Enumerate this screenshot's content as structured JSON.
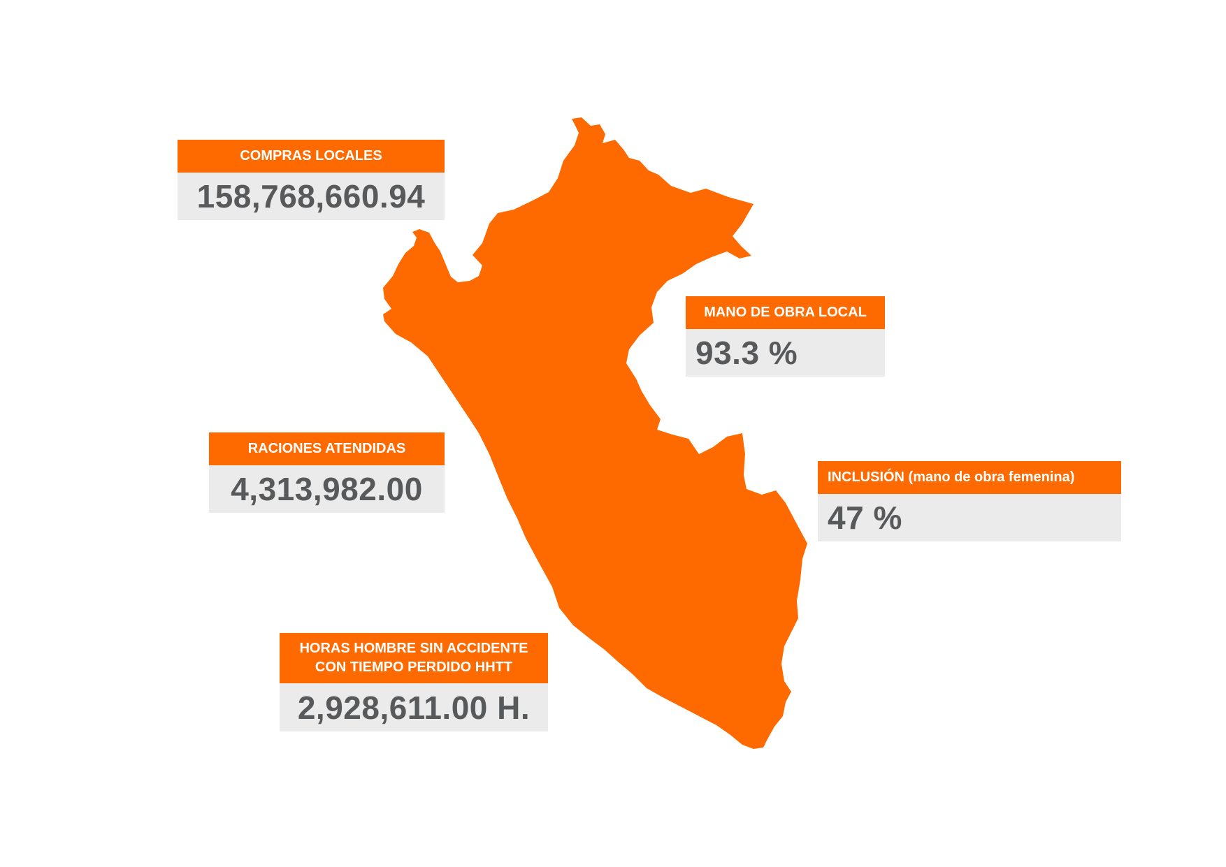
{
  "colors": {
    "accent": "#ff6a00",
    "value_bg": "#ebebeb",
    "value_text": "#58595b"
  },
  "map": {
    "region": "Perú"
  },
  "indicators": {
    "compras_locales": {
      "label": "COMPRAS LOCALES",
      "value": "158,768,660.94"
    },
    "mano_obra_local": {
      "label": "MANO DE OBRA LOCAL",
      "value": "93.3 %"
    },
    "raciones": {
      "label": "RACIONES ATENDIDAS",
      "value": "4,313,982.00"
    },
    "inclusion": {
      "label": "INCLUSIÓN (mano de obra femenina)",
      "value": "47 %"
    },
    "horas": {
      "label": "HORAS HOMBRE SIN ACCIDENTE\nCON TIEMPO PERDIDO HHTT",
      "value": "2,928,611.00 H."
    }
  }
}
